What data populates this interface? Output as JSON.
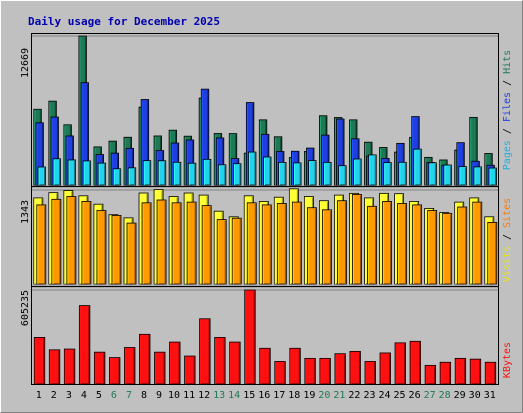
{
  "chart_data": {
    "type": "bar",
    "title": "Daily usage for December 2025",
    "x": [
      "1",
      "2",
      "3",
      "4",
      "5",
      "6",
      "7",
      "8",
      "9",
      "10",
      "11",
      "12",
      "13",
      "14",
      "15",
      "16",
      "17",
      "18",
      "19",
      "20",
      "21",
      "22",
      "23",
      "24",
      "25",
      "26",
      "27",
      "28",
      "29",
      "30",
      "31"
    ],
    "weekend_days": [
      6,
      7,
      13,
      14,
      20,
      21,
      27,
      28
    ],
    "colors": {
      "title": "#0000b0",
      "hits": "#1e7a55",
      "files": "#1f3fe0",
      "pages": "#22d3ee",
      "visits": "#ffff33",
      "sites": "#ff9900",
      "kbytes": "#ff1010",
      "weekend_label": "#1f7a4f",
      "weekday_label": "#000000"
    },
    "panels": [
      {
        "id": "top",
        "y_max_label": "12669",
        "y_max": 12669,
        "side_labels": [
          {
            "text": "Pages",
            "color": "#22aee0"
          },
          {
            "text": " / ",
            "color": "#000000"
          },
          {
            "text": "Files",
            "color": "#1f3fe0"
          },
          {
            "text": " / ",
            "color": "#000000"
          },
          {
            "text": "Hits",
            "color": "#1e7a55"
          }
        ],
        "series": [
          {
            "name": "Hits",
            "color": "#1e7a55",
            "values": [
              6440,
              7130,
              5120,
              12669,
              3240,
              3730,
              4060,
              6620,
              4170,
              4660,
              4150,
              7390,
              4380,
              4370,
              2710,
              5540,
              4100,
              2340,
              2850,
              5890,
              5740,
              5540,
              3640,
              3190,
              2800,
              4050,
              2350,
              2130,
              2970,
              5750,
              2680
            ]
          },
          {
            "name": "Files",
            "color": "#1f3fe0",
            "values": [
              5290,
              5780,
              4170,
              8700,
              2590,
              2710,
              3120,
              7270,
              2930,
              3570,
              3830,
              8150,
              4000,
              2250,
              7010,
              4310,
              2850,
              2870,
              3140,
              4240,
              5610,
              3930,
              2450,
              2260,
              3540,
              5820,
              1920,
              1680,
              3600,
              2020,
              1680
            ]
          },
          {
            "name": "Pages",
            "color": "#22d3ee",
            "values": [
              1530,
              2230,
              2130,
              2050,
              1860,
              1380,
              1460,
              2070,
              2060,
              1930,
              1850,
              2180,
              1720,
              1810,
              2800,
              2380,
              1920,
              1880,
              2080,
              1920,
              1640,
              2210,
              2560,
              1910,
              1930,
              3050,
              1890,
              1700,
              1570,
              1540,
              1440
            ]
          }
        ]
      },
      {
        "id": "mid",
        "y_max_label": "1343",
        "y_max": 1343,
        "side_labels": [
          {
            "text": "Visits",
            "color": "#e8e800"
          },
          {
            "text": " / ",
            "color": "#000000"
          },
          {
            "text": "Sites",
            "color": "#ff7a00"
          }
        ],
        "series": [
          {
            "name": "Visits",
            "color": "#ffff33",
            "values": [
              1230,
              1305,
              1335,
              1260,
              1140,
              990,
              945,
              1300,
              1350,
              1250,
              1300,
              1270,
              1040,
              960,
              1260,
              1180,
              1240,
              1360,
              1250,
              1190,
              1270,
              1295,
              1230,
              1295,
              1290,
              1180,
              1080,
              1020,
              1170,
              1230,
              960
            ]
          },
          {
            "name": "Sites",
            "color": "#ff9900",
            "values": [
              1130,
              1210,
              1250,
              1180,
              1050,
              980,
              870,
              1160,
              1200,
              1160,
              1170,
              1120,
              920,
              940,
              1160,
              1130,
              1150,
              1170,
              1090,
              1060,
              1190,
              1280,
              1110,
              1180,
              1150,
              1130,
              1050,
              1010,
              1100,
              1170,
              880
            ]
          }
        ]
      },
      {
        "id": "bot",
        "y_max_label": "605235",
        "y_max": 605235,
        "side_labels": [
          {
            "text": "KBytes",
            "color": "#ff1010"
          }
        ],
        "series": [
          {
            "name": "KBytes",
            "color": "#ff1010",
            "values": [
              300000,
              220000,
              225000,
              505000,
              205000,
              170000,
              235000,
              320000,
              205000,
              270000,
              180000,
              420000,
              300000,
              270000,
              605235,
              230000,
              145000,
              230000,
              165000,
              165000,
              195000,
              210000,
              145000,
              200000,
              265000,
              275000,
              120000,
              140000,
              165000,
              160000,
              140000
            ]
          }
        ]
      }
    ]
  }
}
